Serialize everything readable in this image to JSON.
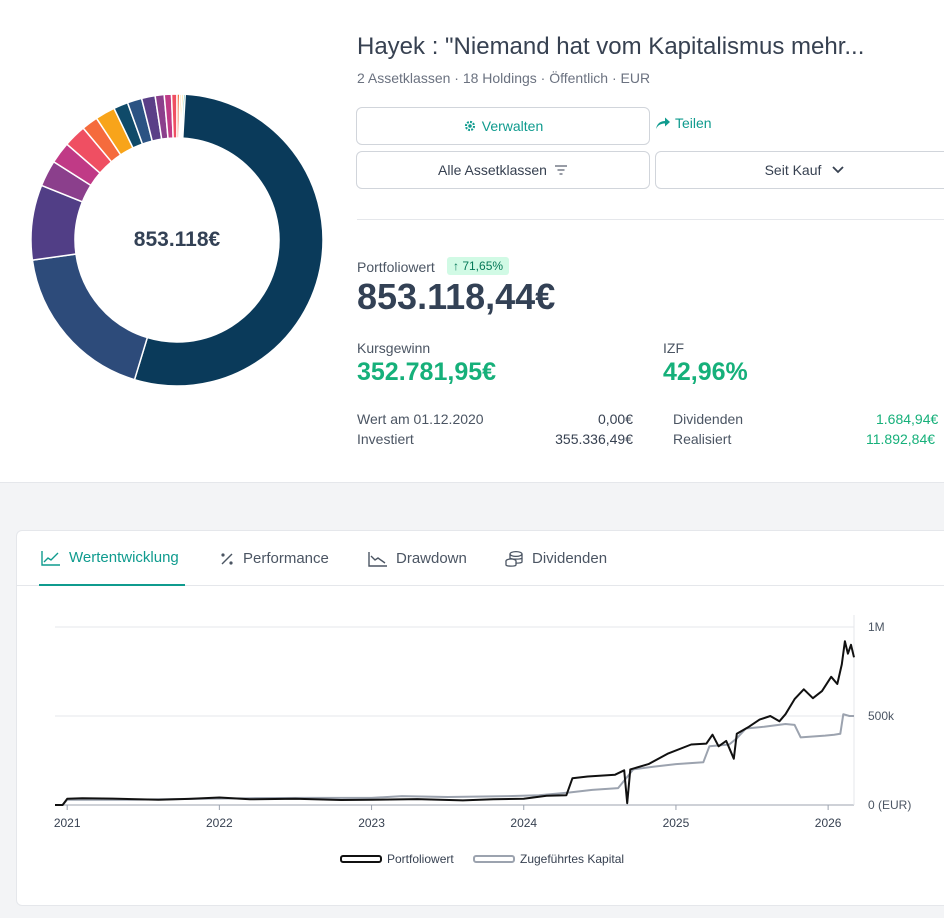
{
  "portfolio": {
    "title": "Hayek : \"Niemand hat vom Kapitalismus mehr...",
    "meta": "2 Assetklassen · 18 Holdings · Öffentlich · EUR",
    "center_value": "853.118€",
    "donut_segments": [
      {
        "share": 0.547,
        "color": "#0a3a5a"
      },
      {
        "share": 0.181,
        "color": "#2d4b7a"
      },
      {
        "share": 0.083,
        "color": "#513e86"
      },
      {
        "share": 0.029,
        "color": "#8b3f8c"
      },
      {
        "share": 0.024,
        "color": "#c03a86"
      },
      {
        "share": 0.025,
        "color": "#ef4f62"
      },
      {
        "share": 0.018,
        "color": "#f56b3d"
      },
      {
        "share": 0.022,
        "color": "#f8a41a"
      },
      {
        "share": 0.016,
        "color": "#0f4a69"
      },
      {
        "share": 0.016,
        "color": "#2b5383"
      },
      {
        "share": 0.015,
        "color": "#5a3f87"
      },
      {
        "share": 0.01,
        "color": "#8b3f8c"
      },
      {
        "share": 0.008,
        "color": "#c03a86"
      },
      {
        "share": 0.006,
        "color": "#ef4f62"
      },
      {
        "share": 0.003,
        "color": "#f56b3d"
      },
      {
        "share": 0.002,
        "color": "#f8a41a"
      },
      {
        "share": 0.002,
        "color": "#fbbf24"
      },
      {
        "share": 0.002,
        "color": "#0f9b8e"
      }
    ]
  },
  "actions": {
    "manage_label": "Verwalten",
    "manage_icon": "gear-icon",
    "share_label": "Teilen",
    "share_icon": "share-arrow-icon",
    "asset_classes_label": "Alle Assetklassen",
    "asset_classes_icon": "filter-icon",
    "range_label": "Seit Kauf",
    "range_icon": "chevron-down-icon"
  },
  "stats": {
    "portfolio_value_label": "Portfoliowert",
    "portfolio_change": "↑ 71,65%",
    "portfolio_value": "853.118,44€",
    "gain_label": "Kursgewinn",
    "gain_value": "352.781,95€",
    "irr_label": "IZF",
    "irr_value": "42,96%",
    "rows": [
      {
        "label": "Wert am 01.12.2020",
        "value": "0,00€"
      },
      {
        "label": "Investiert",
        "value": "355.336,49€"
      },
      {
        "label": "Dividenden",
        "value": "1.684,94€"
      },
      {
        "label": "Realisiert",
        "value": "11.892,84€"
      }
    ],
    "green_color": "#16b07a"
  },
  "tabs": [
    {
      "label": "Wertentwicklung",
      "icon": "line-chart-icon",
      "active": true
    },
    {
      "label": "Performance",
      "icon": "percent-icon",
      "active": false
    },
    {
      "label": "Drawdown",
      "icon": "drawdown-chart-icon",
      "active": false
    },
    {
      "label": "Dividenden",
      "icon": "coins-icon",
      "active": false
    }
  ],
  "chart_data": {
    "type": "line",
    "x_tick_labels": [
      "2021",
      "2022",
      "2023",
      "2024",
      "2025",
      "2026"
    ],
    "y_tick_labels": [
      "1M",
      "500k",
      "0 (EUR)"
    ],
    "ylim": [
      0,
      1000000
    ],
    "xlim": [
      2020.92,
      2026.17
    ],
    "legend_position": "bottom",
    "series": [
      {
        "name": "Portfoliowert",
        "color": "#111111",
        "points": [
          [
            2020.92,
            0
          ],
          [
            2020.97,
            0
          ],
          [
            2021.0,
            35000
          ],
          [
            2021.1,
            38000
          ],
          [
            2021.3,
            36000
          ],
          [
            2021.6,
            30000
          ],
          [
            2021.8,
            34000
          ],
          [
            2022.0,
            42000
          ],
          [
            2022.2,
            32000
          ],
          [
            2022.5,
            35000
          ],
          [
            2022.8,
            28000
          ],
          [
            2023.0,
            30000
          ],
          [
            2023.3,
            33000
          ],
          [
            2023.6,
            26000
          ],
          [
            2023.8,
            32000
          ],
          [
            2024.0,
            35000
          ],
          [
            2024.15,
            52000
          ],
          [
            2024.28,
            55000
          ],
          [
            2024.32,
            150000
          ],
          [
            2024.42,
            160000
          ],
          [
            2024.6,
            170000
          ],
          [
            2024.66,
            195000
          ],
          [
            2024.68,
            10000
          ],
          [
            2024.7,
            200000
          ],
          [
            2024.82,
            230000
          ],
          [
            2024.95,
            290000
          ],
          [
            2025.1,
            340000
          ],
          [
            2025.2,
            345000
          ],
          [
            2025.24,
            395000
          ],
          [
            2025.28,
            330000
          ],
          [
            2025.33,
            360000
          ],
          [
            2025.38,
            260000
          ],
          [
            2025.4,
            400000
          ],
          [
            2025.48,
            440000
          ],
          [
            2025.55,
            480000
          ],
          [
            2025.62,
            500000
          ],
          [
            2025.68,
            470000
          ],
          [
            2025.72,
            510000
          ],
          [
            2025.78,
            595000
          ],
          [
            2025.84,
            650000
          ],
          [
            2025.9,
            600000
          ],
          [
            2025.96,
            640000
          ],
          [
            2026.02,
            720000
          ],
          [
            2026.06,
            680000
          ],
          [
            2026.09,
            790000
          ],
          [
            2026.11,
            920000
          ],
          [
            2026.13,
            850000
          ],
          [
            2026.15,
            900000
          ],
          [
            2026.17,
            830000
          ]
        ]
      },
      {
        "name": "Zugeführtes Kapital",
        "color": "#9ca3af",
        "points": [
          [
            2020.92,
            0
          ],
          [
            2020.97,
            0
          ],
          [
            2021.0,
            30000
          ],
          [
            2021.4,
            30000
          ],
          [
            2021.8,
            34000
          ],
          [
            2022.2,
            38000
          ],
          [
            2022.6,
            40000
          ],
          [
            2023.0,
            40000
          ],
          [
            2023.2,
            50000
          ],
          [
            2023.5,
            45000
          ],
          [
            2023.9,
            50000
          ],
          [
            2024.1,
            55000
          ],
          [
            2024.3,
            70000
          ],
          [
            2024.45,
            85000
          ],
          [
            2024.62,
            95000
          ],
          [
            2024.72,
            200000
          ],
          [
            2024.85,
            215000
          ],
          [
            2025.0,
            230000
          ],
          [
            2025.18,
            240000
          ],
          [
            2025.22,
            330000
          ],
          [
            2025.35,
            340000
          ],
          [
            2025.4,
            375000
          ],
          [
            2025.46,
            430000
          ],
          [
            2025.58,
            440000
          ],
          [
            2025.72,
            455000
          ],
          [
            2025.78,
            450000
          ],
          [
            2025.82,
            380000
          ],
          [
            2025.9,
            385000
          ],
          [
            2025.98,
            390000
          ],
          [
            2026.04,
            395000
          ],
          [
            2026.08,
            400000
          ],
          [
            2026.1,
            510000
          ],
          [
            2026.14,
            500000
          ],
          [
            2026.17,
            500000
          ]
        ]
      }
    ]
  }
}
